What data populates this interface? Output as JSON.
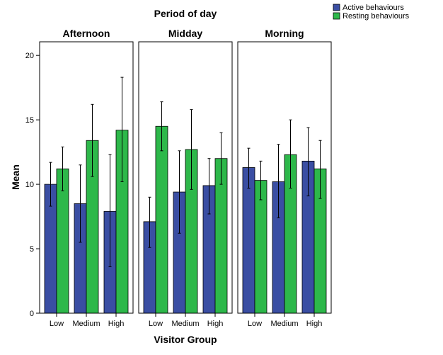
{
  "chart_data": {
    "type": "bar",
    "title": "Period of day",
    "xlabel": "Visitor Group",
    "ylabel": "Mean",
    "ylim": [
      0,
      21
    ],
    "yticks": [
      0,
      5,
      10,
      15,
      20
    ],
    "categories": [
      "Low",
      "Medium",
      "High"
    ],
    "legend": {
      "placement": "top-right",
      "entries": [
        {
          "name": "Active behaviours",
          "color": "#3a4ea3"
        },
        {
          "name": "Resting behaviours",
          "color": "#2db84a"
        }
      ]
    },
    "panels": [
      {
        "name": "Afternoon",
        "series": [
          {
            "name": "Active behaviours",
            "values": [
              10.0,
              8.5,
              7.9
            ],
            "error_low": [
              8.3,
              5.5,
              3.6
            ],
            "error_high": [
              11.7,
              11.5,
              12.3
            ]
          },
          {
            "name": "Resting behaviours",
            "values": [
              11.2,
              13.4,
              14.2
            ],
            "error_low": [
              9.5,
              10.6,
              10.2
            ],
            "error_high": [
              12.9,
              16.2,
              18.3
            ]
          }
        ]
      },
      {
        "name": "Midday",
        "series": [
          {
            "name": "Active behaviours",
            "values": [
              7.1,
              9.4,
              9.9
            ],
            "error_low": [
              5.1,
              6.2,
              7.7
            ],
            "error_high": [
              9.0,
              12.6,
              12.0
            ]
          },
          {
            "name": "Resting behaviours",
            "values": [
              14.5,
              12.7,
              12.0
            ],
            "error_low": [
              12.6,
              9.6,
              10.0
            ],
            "error_high": [
              16.4,
              15.8,
              14.0
            ]
          }
        ]
      },
      {
        "name": "Morning",
        "series": [
          {
            "name": "Active behaviours",
            "values": [
              11.3,
              10.2,
              11.8
            ],
            "error_low": [
              9.7,
              7.4,
              9.1
            ],
            "error_high": [
              12.8,
              13.1,
              14.4
            ]
          },
          {
            "name": "Resting behaviours",
            "values": [
              10.3,
              12.3,
              11.2
            ],
            "error_low": [
              8.8,
              9.7,
              8.9
            ],
            "error_high": [
              11.8,
              15.0,
              13.4
            ]
          }
        ]
      }
    ]
  }
}
